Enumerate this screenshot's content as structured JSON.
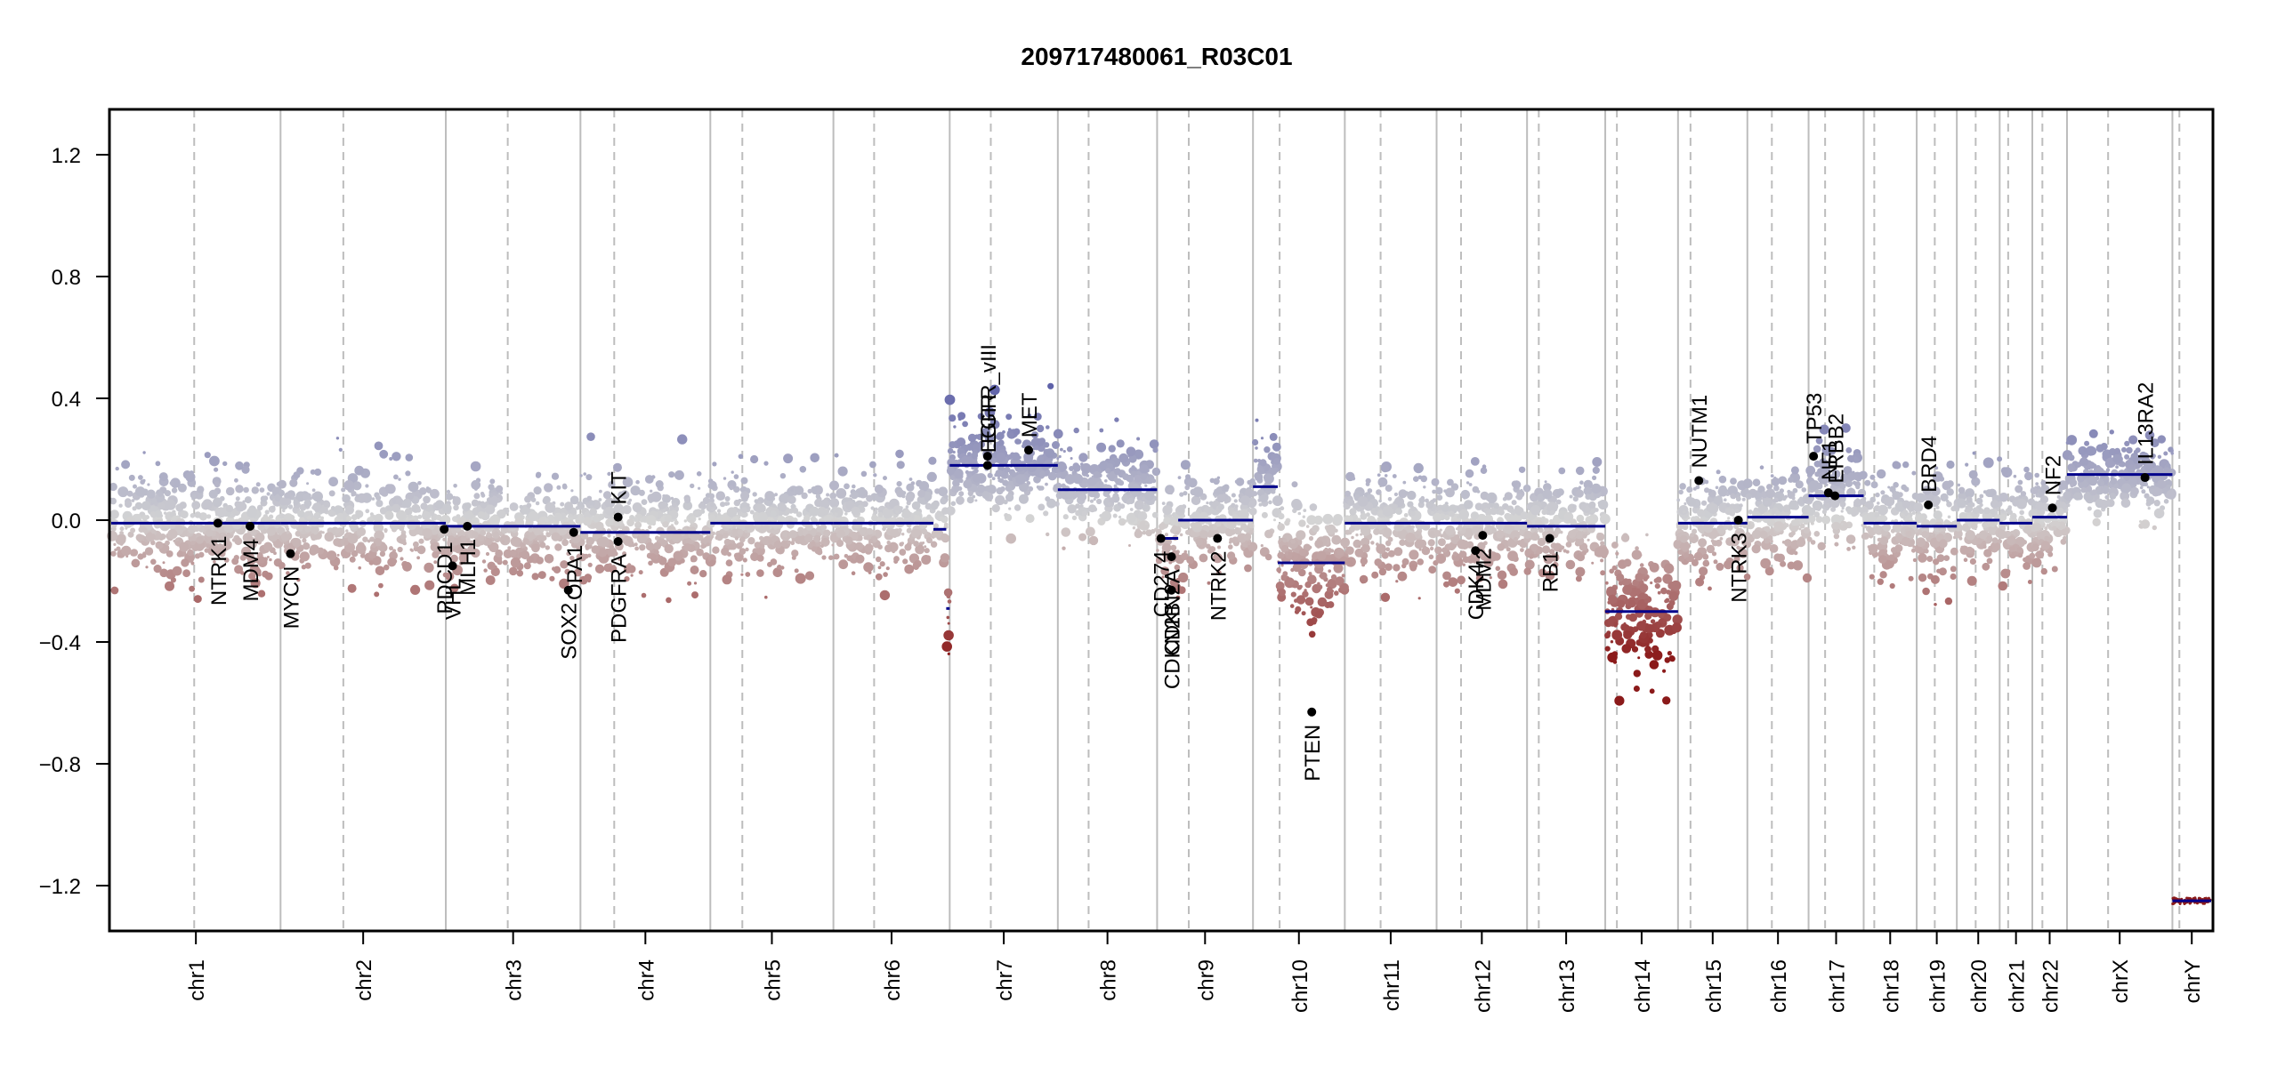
{
  "chart_data": {
    "type": "scatter",
    "title": "209717480061_R03C01",
    "xlabel": "",
    "ylabel": "",
    "ylim": [
      -1.35,
      1.35
    ],
    "yticks": [
      {
        "value": 1.2,
        "label": "1.2"
      },
      {
        "value": 0.8,
        "label": "0.8"
      },
      {
        "value": 0.4,
        "label": "0.4"
      },
      {
        "value": 0.0,
        "label": "0.0"
      },
      {
        "value": -0.4,
        "label": "−0.4"
      },
      {
        "value": -0.8,
        "label": "−0.8"
      },
      {
        "value": -1.2,
        "label": "−1.2"
      }
    ],
    "grid": false,
    "point_colors": {
      "gain": "#5c5fa8",
      "neutral": "#d4d4d4",
      "loss": "#8b1a1a",
      "segment": "#00008b",
      "gene": "#000000",
      "chrom_border": "#bdbdbd",
      "centromere": "#bdbdbd"
    },
    "chromosomes": [
      {
        "name": "chr1",
        "size": 249,
        "centromere": 0.49,
        "segments": [
          {
            "start": 0,
            "end": 1,
            "value": -0.01
          }
        ],
        "noise": 0.08
      },
      {
        "name": "chr2",
        "size": 243,
        "centromere": 0.38,
        "segments": [
          {
            "start": 0,
            "end": 1,
            "value": -0.01
          }
        ],
        "noise": 0.08
      },
      {
        "name": "chr3",
        "size": 198,
        "centromere": 0.46,
        "segments": [
          {
            "start": 0,
            "end": 1,
            "value": -0.02
          }
        ],
        "noise": 0.08
      },
      {
        "name": "chr4",
        "size": 191,
        "centromere": 0.26,
        "segments": [
          {
            "start": 0,
            "end": 1,
            "value": -0.04
          }
        ],
        "noise": 0.08
      },
      {
        "name": "chr5",
        "size": 181,
        "centromere": 0.26,
        "segments": [
          {
            "start": 0,
            "end": 1,
            "value": -0.01
          }
        ],
        "noise": 0.08
      },
      {
        "name": "chr6",
        "size": 171,
        "centromere": 0.35,
        "segments": [
          {
            "start": 0,
            "end": 0.86,
            "value": -0.01
          },
          {
            "start": 0.86,
            "end": 0.97,
            "value": -0.03
          },
          {
            "start": 0.97,
            "end": 1,
            "value": -0.29
          }
        ],
        "noise": 0.08
      },
      {
        "name": "chr7",
        "size": 159,
        "centromere": 0.38,
        "segments": [
          {
            "start": 0,
            "end": 1,
            "value": 0.18
          }
        ],
        "noise": 0.08
      },
      {
        "name": "chr8",
        "size": 146,
        "centromere": 0.31,
        "segments": [
          {
            "start": 0,
            "end": 1,
            "value": 0.1
          }
        ],
        "noise": 0.08
      },
      {
        "name": "chr9",
        "size": 141,
        "centromere": 0.33,
        "segments": [
          {
            "start": 0,
            "end": 0.22,
            "value": -0.06
          },
          {
            "start": 0.22,
            "end": 1,
            "value": 0.0
          }
        ],
        "noise": 0.08
      },
      {
        "name": "chr10",
        "size": 135,
        "centromere": 0.29,
        "segments": [
          {
            "start": 0,
            "end": 0.27,
            "value": 0.11
          },
          {
            "start": 0.27,
            "end": 1,
            "value": -0.14
          }
        ],
        "noise": 0.09
      },
      {
        "name": "chr11",
        "size": 135,
        "centromere": 0.39,
        "segments": [
          {
            "start": 0,
            "end": 1,
            "value": -0.01
          }
        ],
        "noise": 0.08
      },
      {
        "name": "chr12",
        "size": 133,
        "centromere": 0.27,
        "segments": [
          {
            "start": 0,
            "end": 1,
            "value": -0.01
          }
        ],
        "noise": 0.08
      },
      {
        "name": "chr13",
        "size": 115,
        "centromere": 0.15,
        "segments": [
          {
            "start": 0,
            "end": 1,
            "value": -0.02
          }
        ],
        "noise": 0.08
      },
      {
        "name": "chr14",
        "size": 107,
        "centromere": 0.16,
        "segments": [
          {
            "start": 0,
            "end": 1,
            "value": -0.3
          }
        ],
        "noise": 0.1
      },
      {
        "name": "chr15",
        "size": 102,
        "centromere": 0.18,
        "segments": [
          {
            "start": 0,
            "end": 1,
            "value": -0.01
          }
        ],
        "noise": 0.08
      },
      {
        "name": "chr16",
        "size": 90,
        "centromere": 0.4,
        "segments": [
          {
            "start": 0,
            "end": 1,
            "value": 0.01
          }
        ],
        "noise": 0.08
      },
      {
        "name": "chr17",
        "size": 81,
        "centromere": 0.3,
        "segments": [
          {
            "start": 0,
            "end": 1,
            "value": 0.08
          }
        ],
        "noise": 0.08
      },
      {
        "name": "chr18",
        "size": 78,
        "centromere": 0.2,
        "segments": [
          {
            "start": 0,
            "end": 1,
            "value": -0.01
          }
        ],
        "noise": 0.08
      },
      {
        "name": "chr19",
        "size": 59,
        "centromere": 0.45,
        "segments": [
          {
            "start": 0,
            "end": 1,
            "value": -0.02
          }
        ],
        "noise": 0.08
      },
      {
        "name": "chr20",
        "size": 63,
        "centromere": 0.44,
        "segments": [
          {
            "start": 0,
            "end": 1,
            "value": 0.0
          }
        ],
        "noise": 0.08
      },
      {
        "name": "chr21",
        "size": 48,
        "centromere": 0.26,
        "segments": [
          {
            "start": 0,
            "end": 1,
            "value": -0.01
          }
        ],
        "noise": 0.08
      },
      {
        "name": "chr22",
        "size": 51,
        "centromere": 0.29,
        "segments": [
          {
            "start": 0,
            "end": 1,
            "value": 0.01
          }
        ],
        "noise": 0.08
      },
      {
        "name": "chrX",
        "size": 155,
        "centromere": 0.39,
        "segments": [
          {
            "start": 0,
            "end": 1,
            "value": 0.15
          }
        ],
        "noise": 0.06
      },
      {
        "name": "chrY",
        "size": 57,
        "centromere": 0.18,
        "segments": [
          {
            "start": 0,
            "end": 1,
            "value": -1.25
          }
        ],
        "noise": 0.0
      }
    ],
    "genes": [
      {
        "name": "NTRK1",
        "chrom": "chr1",
        "pos": 0.63,
        "value": -0.01,
        "label_side": "below"
      },
      {
        "name": "MDM4",
        "chrom": "chr1",
        "pos": 0.82,
        "value": -0.02,
        "label_side": "below"
      },
      {
        "name": "MYCN",
        "chrom": "chr2",
        "pos": 0.06,
        "value": -0.11,
        "label_side": "below"
      },
      {
        "name": "PDCD1",
        "chrom": "chr2",
        "pos": 0.99,
        "value": -0.03,
        "label_side": "below"
      },
      {
        "name": "VHL",
        "chrom": "chr3",
        "pos": 0.05,
        "value": -0.15,
        "label_side": "below"
      },
      {
        "name": "MLH1",
        "chrom": "chr3",
        "pos": 0.16,
        "value": -0.02,
        "label_side": "below"
      },
      {
        "name": "SOX2",
        "chrom": "chr3",
        "pos": 0.91,
        "value": -0.23,
        "label_side": "below"
      },
      {
        "name": "OPA1",
        "chrom": "chr3",
        "pos": 0.95,
        "value": -0.04,
        "label_side": "below"
      },
      {
        "name": "PDGFRA",
        "chrom": "chr4",
        "pos": 0.29,
        "value": -0.07,
        "label_side": "below"
      },
      {
        "name": "KIT",
        "chrom": "chr4",
        "pos": 0.29,
        "value": 0.01,
        "label_side": "above"
      },
      {
        "name": "EGFR",
        "chrom": "chr7",
        "pos": 0.35,
        "value": 0.18,
        "label_side": "above"
      },
      {
        "name": "EGFR_vIII",
        "chrom": "chr7",
        "pos": 0.35,
        "value": 0.21,
        "label_side": "above"
      },
      {
        "name": "MET",
        "chrom": "chr7",
        "pos": 0.73,
        "value": 0.23,
        "label_side": "above"
      },
      {
        "name": "CD274",
        "chrom": "chr9",
        "pos": 0.04,
        "value": -0.06,
        "label_side": "below"
      },
      {
        "name": "CDKN2A",
        "chrom": "chr9",
        "pos": 0.15,
        "value": -0.12,
        "label_side": "below"
      },
      {
        "name": "CDKN2B",
        "chrom": "chr9",
        "pos": 0.15,
        "value": -0.23,
        "label_side": "below"
      },
      {
        "name": "NTRK2",
        "chrom": "chr9",
        "pos": 0.63,
        "value": -0.06,
        "label_side": "below"
      },
      {
        "name": "PTEN",
        "chrom": "chr10",
        "pos": 0.64,
        "value": -0.63,
        "label_side": "below"
      },
      {
        "name": "CDK4",
        "chrom": "chr12",
        "pos": 0.43,
        "value": -0.1,
        "label_side": "below"
      },
      {
        "name": "MDM2",
        "chrom": "chr12",
        "pos": 0.51,
        "value": -0.05,
        "label_side": "below"
      },
      {
        "name": "RB1",
        "chrom": "chr13",
        "pos": 0.29,
        "value": -0.06,
        "label_side": "below"
      },
      {
        "name": "NUTM1",
        "chrom": "chr15",
        "pos": 0.3,
        "value": 0.13,
        "label_side": "above"
      },
      {
        "name": "NTRK3",
        "chrom": "chr15",
        "pos": 0.87,
        "value": 0.0,
        "label_side": "below"
      },
      {
        "name": "TP53",
        "chrom": "chr17",
        "pos": 0.09,
        "value": 0.21,
        "label_side": "above"
      },
      {
        "name": "NF1",
        "chrom": "chr17",
        "pos": 0.36,
        "value": 0.09,
        "label_side": "above"
      },
      {
        "name": "ERBB2",
        "chrom": "chr17",
        "pos": 0.48,
        "value": 0.08,
        "label_side": "above"
      },
      {
        "name": "BRD4",
        "chrom": "chr19",
        "pos": 0.29,
        "value": 0.05,
        "label_side": "above"
      },
      {
        "name": "NF2",
        "chrom": "chr22",
        "pos": 0.58,
        "value": 0.04,
        "label_side": "above"
      },
      {
        "name": "IL13RA2",
        "chrom": "chrX",
        "pos": 0.74,
        "value": 0.14,
        "label_side": "above"
      }
    ]
  }
}
